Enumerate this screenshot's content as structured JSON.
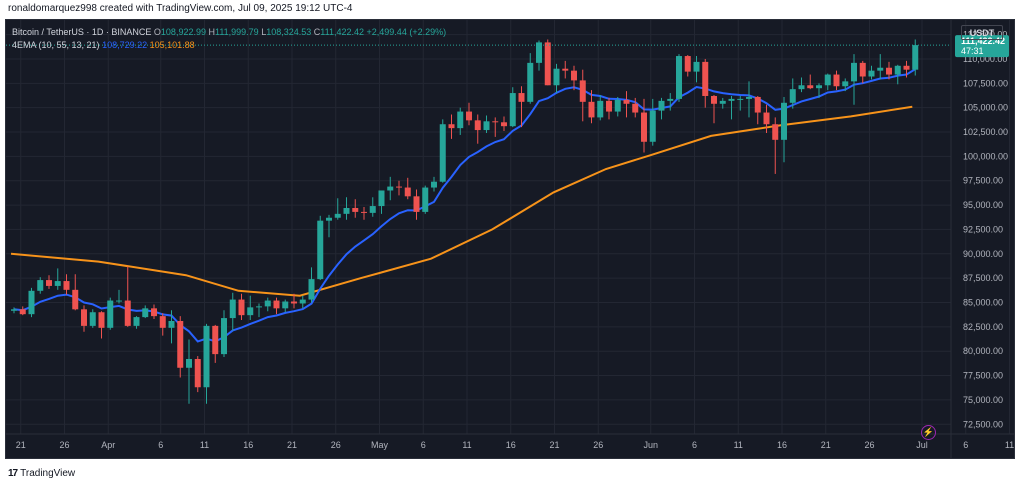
{
  "header": {
    "caption": "ronaldomarquez998 created with TradingView.com, Jul 09, 2025 19:12 UTC-4"
  },
  "legend": {
    "symbol": "Bitcoin / TetherUS · 1D · BINANCE",
    "open_label": "O",
    "open": "108,922.99",
    "high_label": "H",
    "high": "111,999.79",
    "low_label": "L",
    "low": "108,324.53",
    "close_label": "C",
    "close": "111,422.42",
    "change": "+2,499.44 (+2.29%)",
    "indicator": "4EMA (10, 55, 13, 21)",
    "ema_fast_value": "108,729.22",
    "ema_slow_value": "105,101.88"
  },
  "currency": "USDT",
  "last_price": {
    "value": "111,422.42",
    "countdown": "47:31"
  },
  "footer": {
    "brand": "TradingView",
    "brand_mark": "17"
  },
  "colors": {
    "background": "#161a25",
    "up": "#26a69a",
    "down": "#ef5350",
    "ema_fast": "#2962ff",
    "ema_slow": "#f7931a",
    "grid": "#232733",
    "text": "#b2b5be"
  },
  "chart_data": {
    "type": "candlestick",
    "y_ticks": [
      "112,500.00",
      "110,000.00",
      "107,500.00",
      "105,000.00",
      "102,500.00",
      "100,000.00",
      "97,500.00",
      "95,000.00",
      "92,500.00",
      "90,000.00",
      "87,500.00",
      "85,000.00",
      "82,500.00",
      "80,000.00",
      "77,500.00",
      "75,000.00",
      "72,500.00"
    ],
    "ylim": [
      71500,
      114000
    ],
    "x_ticks": [
      "21",
      "26",
      "Apr",
      "6",
      "11",
      "16",
      "21",
      "26",
      "May",
      "6",
      "11",
      "16",
      "21",
      "26",
      "Jun",
      "6",
      "11",
      "16",
      "21",
      "26",
      "Jul",
      "6",
      "11"
    ],
    "candles": [
      [
        84150,
        84500,
        83900,
        84300
      ],
      [
        84300,
        84600,
        83700,
        83800
      ],
      [
        83800,
        86500,
        83500,
        86200
      ],
      [
        86200,
        87600,
        85900,
        87300
      ],
      [
        87300,
        87800,
        86400,
        86700
      ],
      [
        86700,
        88500,
        86300,
        87200
      ],
      [
        87200,
        87900,
        85800,
        86300
      ],
      [
        86300,
        87900,
        84200,
        84300
      ],
      [
        84300,
        84700,
        82000,
        82600
      ],
      [
        82600,
        84300,
        82400,
        84000
      ],
      [
        84000,
        84100,
        81300,
        82400
      ],
      [
        82400,
        85500,
        82200,
        85200
      ],
      [
        85200,
        86300,
        84900,
        85200
      ],
      [
        85200,
        88700,
        82500,
        82600
      ],
      [
        82600,
        83600,
        82300,
        83500
      ],
      [
        83500,
        84700,
        83400,
        84400
      ],
      [
        84400,
        84800,
        83300,
        83600
      ],
      [
        83600,
        83900,
        81600,
        82400
      ],
      [
        82400,
        84200,
        80800,
        83100
      ],
      [
        83100,
        83600,
        77300,
        78300
      ],
      [
        78300,
        81200,
        74600,
        79200
      ],
      [
        79200,
        79500,
        75800,
        76300
      ],
      [
        76300,
        82800,
        74600,
        82600
      ],
      [
        82600,
        82700,
        78800,
        79700
      ],
      [
        79700,
        84200,
        79400,
        83400
      ],
      [
        83400,
        86000,
        82100,
        85300
      ],
      [
        85300,
        85900,
        83200,
        83700
      ],
      [
        83700,
        85700,
        83200,
        84500
      ],
      [
        84500,
        84900,
        83500,
        84600
      ],
      [
        84600,
        85500,
        84100,
        85200
      ],
      [
        85200,
        85500,
        83800,
        84400
      ],
      [
        84400,
        85300,
        84000,
        85100
      ],
      [
        85100,
        85900,
        84400,
        84900
      ],
      [
        84900,
        85700,
        84400,
        85300
      ],
      [
        85300,
        88600,
        85000,
        87400
      ],
      [
        87400,
        93900,
        87300,
        93400
      ],
      [
        93400,
        94000,
        91700,
        93700
      ],
      [
        93700,
        95700,
        93500,
        94100
      ],
      [
        94100,
        95800,
        93500,
        94700
      ],
      [
        94700,
        95600,
        93700,
        94300
      ],
      [
        94300,
        94800,
        93500,
        94200
      ],
      [
        94200,
        95800,
        93800,
        94900
      ],
      [
        94900,
        96500,
        94100,
        96500
      ],
      [
        96500,
        97900,
        95500,
        96900
      ],
      [
        96900,
        97500,
        96000,
        96800
      ],
      [
        96800,
        97800,
        95600,
        95900
      ],
      [
        95900,
        96600,
        93500,
        94300
      ],
      [
        94300,
        97000,
        94100,
        96800
      ],
      [
        96800,
        97900,
        96400,
        97400
      ],
      [
        97400,
        103800,
        97300,
        103300
      ],
      [
        103300,
        104300,
        101800,
        102900
      ],
      [
        102900,
        105000,
        102200,
        104600
      ],
      [
        104600,
        105500,
        103200,
        103700
      ],
      [
        103700,
        104300,
        101300,
        102700
      ],
      [
        102700,
        104200,
        102400,
        103600
      ],
      [
        103600,
        104000,
        102000,
        103500
      ],
      [
        103500,
        104100,
        102600,
        103100
      ],
      [
        103100,
        107100,
        103000,
        106500
      ],
      [
        106500,
        107200,
        103000,
        105600
      ],
      [
        105600,
        110600,
        105400,
        109600
      ],
      [
        109600,
        111900,
        108800,
        111700
      ],
      [
        111700,
        112000,
        107300,
        107300
      ],
      [
        107300,
        109500,
        106500,
        109000
      ],
      [
        109000,
        109800,
        108000,
        108800
      ],
      [
        108800,
        109300,
        106800,
        107800
      ],
      [
        107800,
        108900,
        103600,
        105600
      ],
      [
        105600,
        106800,
        103400,
        104000
      ],
      [
        104000,
        106300,
        103700,
        105700
      ],
      [
        105700,
        106000,
        103800,
        104600
      ],
      [
        104600,
        106100,
        104100,
        105800
      ],
      [
        105800,
        106700,
        104000,
        105400
      ],
      [
        105400,
        106000,
        104000,
        104500
      ],
      [
        104500,
        105900,
        100400,
        101500
      ],
      [
        101500,
        105900,
        101100,
        104700
      ],
      [
        104700,
        106000,
        103800,
        105700
      ],
      [
        105700,
        106500,
        104700,
        105900
      ],
      [
        105900,
        110500,
        105600,
        110300
      ],
      [
        110300,
        110400,
        108200,
        108700
      ],
      [
        108700,
        110300,
        107600,
        109700
      ],
      [
        109700,
        110000,
        105000,
        106200
      ],
      [
        106200,
        106300,
        103400,
        105400
      ],
      [
        105400,
        106000,
        104900,
        105700
      ],
      [
        105700,
        106200,
        103800,
        105900
      ],
      [
        105900,
        106200,
        104700,
        105900
      ],
      [
        105900,
        107700,
        104000,
        106100
      ],
      [
        106100,
        106200,
        103300,
        104500
      ],
      [
        104500,
        105300,
        102400,
        103300
      ],
      [
        103300,
        104000,
        98200,
        101700
      ],
      [
        101700,
        106100,
        99400,
        105500
      ],
      [
        105500,
        108000,
        104900,
        106900
      ],
      [
        106900,
        108100,
        106600,
        107300
      ],
      [
        107300,
        108400,
        106900,
        107000
      ],
      [
        107000,
        107500,
        106000,
        107300
      ],
      [
        107300,
        108500,
        106800,
        108400
      ],
      [
        108400,
        108800,
        106800,
        107200
      ],
      [
        107200,
        108000,
        106700,
        107700
      ],
      [
        107700,
        110500,
        105300,
        109600
      ],
      [
        109600,
        109800,
        107500,
        108200
      ],
      [
        108200,
        109300,
        107900,
        108800
      ],
      [
        108800,
        110500,
        107900,
        109100
      ],
      [
        109100,
        109700,
        107900,
        108400
      ],
      [
        108400,
        109400,
        107400,
        109300
      ],
      [
        109300,
        109800,
        108100,
        108900
      ],
      [
        108900,
        112000,
        108300,
        111422
      ]
    ],
    "series": [
      {
        "name": "4EMA (10, 55, 13, 21)",
        "values_note": "fast EMA computed from candles"
      }
    ],
    "ema_slow_start": 90000,
    "ema_slow_points": [
      [
        0,
        90000
      ],
      [
        10,
        89200
      ],
      [
        20,
        87800
      ],
      [
        26,
        86200
      ],
      [
        33,
        85700
      ],
      [
        40,
        87500
      ],
      [
        48,
        89500
      ],
      [
        55,
        92500
      ],
      [
        62,
        96300
      ],
      [
        68,
        98700
      ],
      [
        73,
        100100
      ],
      [
        80,
        102100
      ],
      [
        88,
        103200
      ],
      [
        96,
        104100
      ],
      [
        103,
        105100
      ]
    ],
    "ylabel": "",
    "xlabel": ""
  }
}
